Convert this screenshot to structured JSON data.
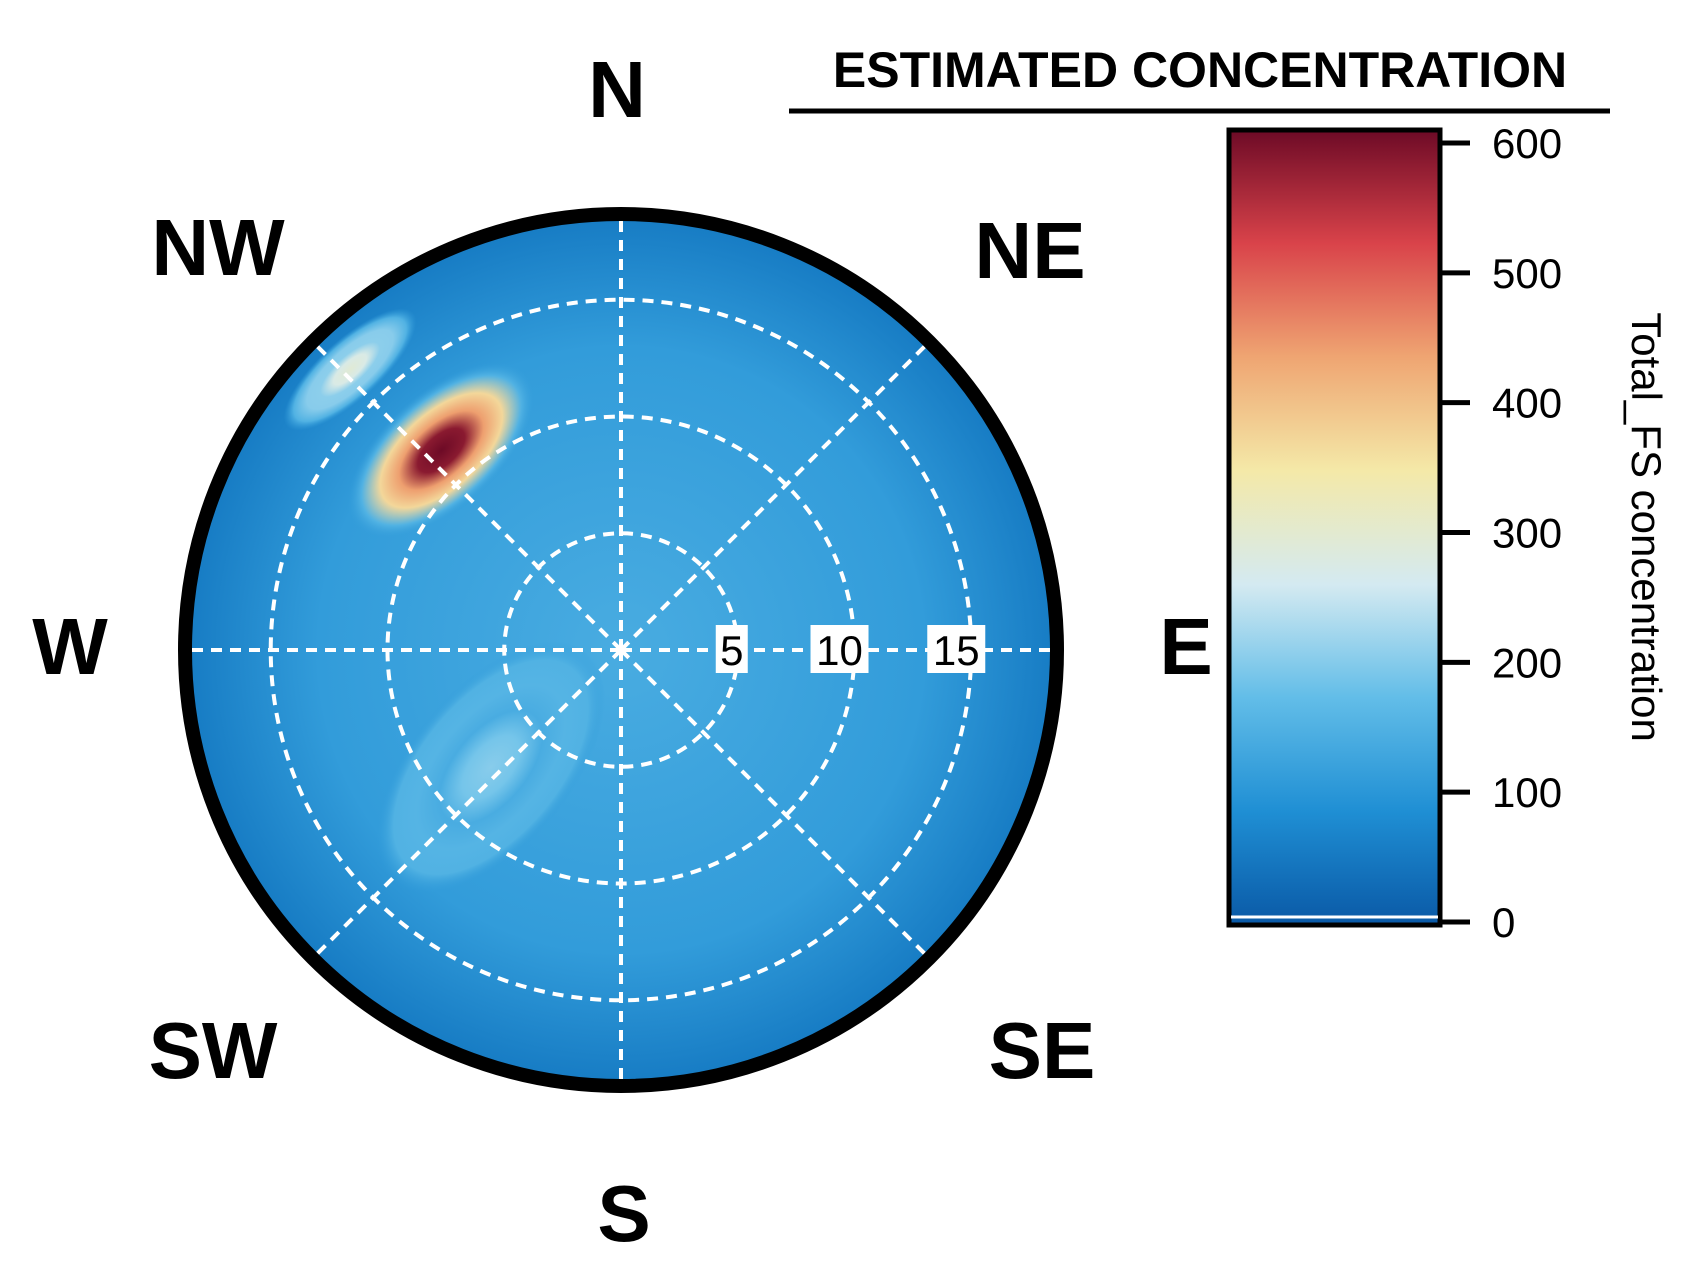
{
  "chart_data": {
    "type": "heatmap",
    "subtype": "polar plot",
    "title": "",
    "legend_title": "ESTIMATED CONCENTRATION",
    "colorbar_label": "Total_FS concentration",
    "colorbar_range": [
      0,
      600
    ],
    "colorbar_ticks": [
      "0",
      "100",
      "200",
      "300",
      "400",
      "500",
      "600"
    ],
    "colorbar_placement": "right",
    "colors": [
      "#0a59a6",
      "#1f8fd4",
      "#62bde8",
      "#d4eaf1",
      "#f4e9a8",
      "#efa572",
      "#d9434a",
      "#6d0a26"
    ],
    "compass_labels": {
      "n": "N",
      "ne": "NE",
      "e": "E",
      "se": "SE",
      "s": "S",
      "sw": "SW",
      "w": "W",
      "nw": "NW"
    },
    "radial_axis": {
      "ticks": [
        5,
        10,
        15
      ],
      "tick_labels": [
        "5",
        "10",
        "15"
      ],
      "max": 18.5
    },
    "grid": "dashed white",
    "background_value": 110,
    "hotspots": [
      {
        "direction_deg": 318,
        "radius": 11.5,
        "peak": 620
      },
      {
        "direction_deg": 316,
        "radius": 16.7,
        "peak": 290
      },
      {
        "direction_deg": 228,
        "radius": 7.5,
        "peak": 200
      }
    ]
  }
}
